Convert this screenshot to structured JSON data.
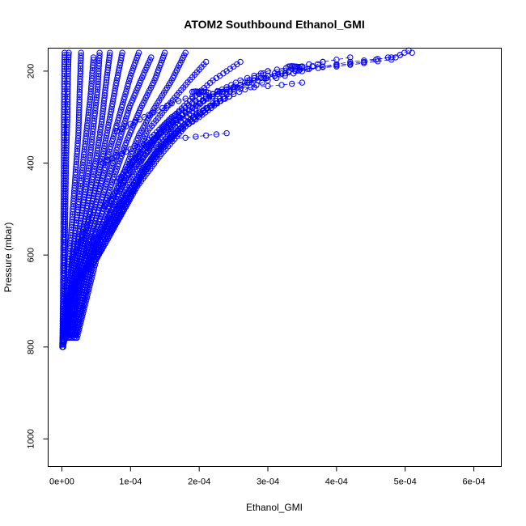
{
  "chart_data": {
    "type": "scatter",
    "title": "ATOM2 Southbound Ethanol_GMI",
    "xlabel": "Ethanol_GMI",
    "ylabel": "Pressure (mbar)",
    "xlim": [
      -2e-05,
      0.00064
    ],
    "ylim": [
      1060,
      150
    ],
    "y_reversed": true,
    "x_ticks": [
      0,
      0.0001,
      0.0002,
      0.0003,
      0.0004,
      0.0005,
      0.0006
    ],
    "x_tick_labels": [
      "0e+00",
      "1e-04",
      "2e-04",
      "3e-04",
      "4e-04",
      "5e-04",
      "6e-04"
    ],
    "y_ticks": [
      200,
      400,
      600,
      800,
      1000
    ],
    "y_tick_labels": [
      "200",
      "400",
      "600",
      "800",
      "1000"
    ],
    "marker": "open-circle",
    "color": "#0000ff",
    "grid": false,
    "legend": "none",
    "series": [
      {
        "x": [
          5e-07,
          1e-06,
          1.5e-06,
          2e-06,
          2.5e-06,
          3e-06,
          3e-06,
          3.5e-06,
          4e-06
        ],
        "y": [
          800,
          760,
          700,
          600,
          500,
          400,
          300,
          200,
          160
        ]
      },
      {
        "x": [
          1e-06,
          2e-06,
          3e-06,
          4e-06,
          5e-06,
          6e-06,
          8e-06,
          9e-06,
          1e-05
        ],
        "y": [
          800,
          750,
          680,
          600,
          500,
          400,
          300,
          200,
          160
        ]
      },
      {
        "x": [
          1e-06,
          4e-06,
          8e-06,
          1.2e-05,
          1.6e-05,
          2e-05,
          2.4e-05,
          2.6e-05,
          2.8e-05
        ],
        "y": [
          800,
          740,
          660,
          580,
          500,
          420,
          340,
          240,
          160
        ]
      },
      {
        "x": [
          2e-06,
          6e-06,
          1.2e-05,
          1.8e-05,
          2.4e-05,
          3e-05,
          3.6e-05,
          4.2e-05,
          4.6e-05
        ],
        "y": [
          800,
          730,
          650,
          570,
          490,
          410,
          330,
          250,
          170
        ]
      },
      {
        "x": [
          2e-06,
          8e-06,
          1.6e-05,
          2.4e-05,
          3.2e-05,
          4e-05,
          4.6e-05,
          5.2e-05,
          5.5e-05
        ],
        "y": [
          795,
          720,
          640,
          560,
          480,
          400,
          320,
          240,
          160
        ]
      },
      {
        "x": [
          3e-06,
          1e-05,
          2e-05,
          3e-05,
          4e-05,
          5e-05,
          5.8e-05,
          6.4e-05,
          7e-05
        ],
        "y": [
          790,
          710,
          630,
          550,
          470,
          390,
          310,
          230,
          160
        ]
      },
      {
        "x": [
          4e-06,
          1.2e-05,
          2.4e-05,
          3.6e-05,
          4.8e-05,
          6e-05,
          7e-05,
          8e-05,
          8.8e-05
        ],
        "y": [
          785,
          700,
          620,
          540,
          460,
          380,
          300,
          220,
          160
        ]
      },
      {
        "x": [
          5e-06,
          1.5e-05,
          2.8e-05,
          4.2e-05,
          5.6e-05,
          7e-05,
          8.5e-05,
          0.0001,
          0.000112
        ],
        "y": [
          780,
          690,
          610,
          530,
          450,
          370,
          290,
          210,
          160
        ]
      },
      {
        "x": [
          6e-06,
          1.8e-05,
          3.4e-05,
          5e-05,
          6.6e-05,
          8.2e-05,
          9.8e-05,
          0.000115,
          0.00013
        ],
        "y": [
          780,
          680,
          600,
          520,
          440,
          360,
          280,
          220,
          170
        ]
      },
      {
        "x": [
          8e-06,
          2.2e-05,
          4e-05,
          5.8e-05,
          7.6e-05,
          9.5e-05,
          0.000115,
          0.000135,
          0.00015
        ],
        "y": [
          780,
          670,
          590,
          510,
          430,
          350,
          280,
          220,
          160
        ]
      },
      {
        "x": [
          1e-05,
          2.6e-05,
          4.6e-05,
          6.8e-05,
          9e-05,
          0.000112,
          0.000135,
          0.00016,
          0.00018
        ],
        "y": [
          780,
          660,
          580,
          500,
          420,
          340,
          280,
          220,
          160
        ]
      },
      {
        "x": [
          1.2e-05,
          3e-05,
          5.2e-05,
          7.6e-05,
          0.0001,
          0.000125,
          0.000152,
          0.00018,
          0.00021
        ],
        "y": [
          780,
          650,
          570,
          490,
          410,
          330,
          280,
          230,
          180
        ]
      },
      {
        "x": [
          1.5e-05,
          3.5e-05,
          6e-05,
          8.8e-05,
          0.000118,
          0.000148,
          0.000182,
          0.00022,
          0.00026
        ],
        "y": [
          780,
          640,
          560,
          470,
          390,
          320,
          270,
          220,
          180
        ]
      },
      {
        "x": [
          1.8e-05,
          4e-05,
          6.5e-05,
          9e-05,
          0.000115,
          0.00014,
          0.00017,
          0.0002,
          0.000235
        ],
        "y": [
          780,
          630,
          570,
          500,
          430,
          370,
          330,
          300,
          260
        ]
      },
      {
        "x": [
          2e-05,
          4.5e-05,
          7e-05,
          9.5e-05,
          0.00012,
          0.000145,
          0.000175,
          0.00021,
          0.00025
        ],
        "y": [
          780,
          620,
          550,
          480,
          420,
          370,
          320,
          280,
          250
        ]
      },
      {
        "x": [
          2.2e-05,
          5e-05,
          8e-05,
          0.00011,
          0.000145,
          0.00018,
          0.00022,
          0.00026,
          0.0003
        ],
        "y": [
          780,
          610,
          530,
          450,
          380,
          320,
          270,
          230,
          200
        ]
      },
      {
        "x": [
          3e-05,
          6e-05,
          9.5e-05,
          0.00013,
          0.000165,
          0.00021,
          0.00026,
          0.00031,
          0.00035
        ],
        "y": [
          640,
          560,
          470,
          390,
          320,
          260,
          230,
          210,
          190
        ]
      },
      {
        "x": [
          4e-05,
          8e-05,
          0.00012,
          0.00016,
          0.0002,
          0.00025,
          0.0003,
          0.00035,
          0.00038
        ],
        "y": [
          600,
          500,
          410,
          340,
          290,
          250,
          220,
          200,
          180
        ]
      },
      {
        "x": [
          6e-05,
          0.0001,
          0.00014,
          0.00018,
          0.00022,
          0.00026,
          0.0003,
          0.00034,
          0.00042
        ],
        "y": [
          500,
          420,
          350,
          290,
          250,
          220,
          200,
          190,
          170
        ]
      },
      {
        "x": [
          8e-05,
          0.00012,
          0.00016,
          0.0002,
          0.00024,
          0.00028,
          0.00034,
          0.00042,
          0.00048
        ],
        "y": [
          440,
          370,
          310,
          270,
          240,
          220,
          200,
          180,
          170
        ]
      },
      {
        "x": [
          0.0001,
          0.00014,
          0.00018,
          0.00022,
          0.00026,
          0.0003,
          0.00036,
          0.00044,
          0.00051
        ],
        "y": [
          400,
          340,
          290,
          250,
          230,
          210,
          195,
          180,
          160
        ]
      },
      {
        "x": [
          0.00012,
          0.00016,
          0.0002,
          0.00024,
          0.00028,
          0.00032,
          0.0004,
          0.00048,
          0.000505
        ],
        "y": [
          360,
          300,
          260,
          240,
          220,
          200,
          190,
          175,
          155
        ]
      },
      {
        "x": [
          8e-05,
          0.00012,
          0.00016,
          0.0002,
          0.00024,
          0.00028,
          0.00032,
          0.00035
        ],
        "y": [
          330,
          300,
          270,
          250,
          240,
          235,
          230,
          225
        ]
      },
      {
        "x": [
          6e-05,
          0.0001,
          0.00014,
          0.00018,
          0.00021,
          0.00024
        ],
        "y": [
          400,
          370,
          350,
          345,
          340,
          335
        ]
      },
      {
        "x": [
          0.00019,
          0.000195,
          0.0002,
          0.000205,
          0.00021
        ],
        "y": [
          245,
          244,
          245,
          246,
          245
        ]
      },
      {
        "x": [
          0.00033,
          0.000335,
          0.00034,
          0.000345,
          0.00035
        ],
        "y": [
          190,
          189,
          190,
          191,
          190
        ]
      }
    ]
  }
}
